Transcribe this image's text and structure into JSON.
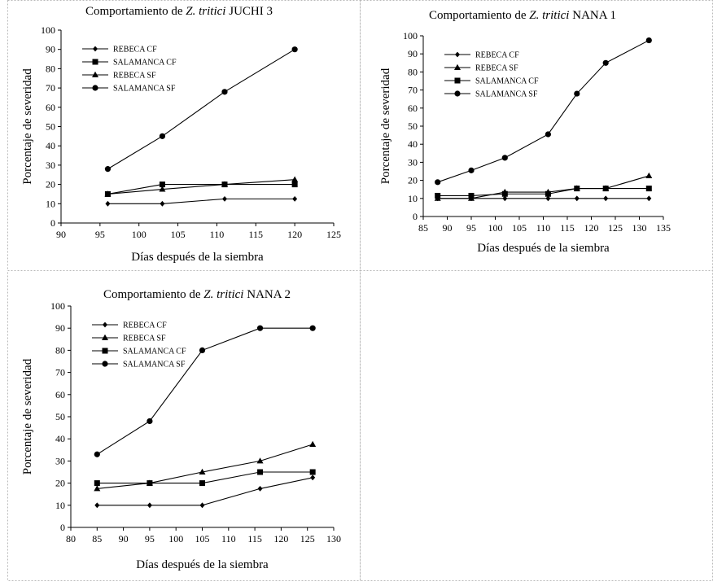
{
  "chart_data": [
    {
      "type": "line",
      "title": "Comportamiento de Z. tritici JUCHI 3",
      "title_parts": {
        "prefix": "Comportamiento de ",
        "italic": "Z. tritici",
        "suffix": " JUCHI 3"
      },
      "xlabel": "Días después de la siembra",
      "ylabel": "Porcentaje de severidad",
      "xlim": [
        90,
        125
      ],
      "ylim": [
        0,
        100
      ],
      "xticks": [
        90,
        95,
        100,
        105,
        110,
        115,
        120,
        125
      ],
      "yticks": [
        0,
        10,
        20,
        30,
        40,
        50,
        60,
        70,
        80,
        90,
        100
      ],
      "legend_position": "top-left",
      "grid": false,
      "series": [
        {
          "name": "REBECA CF",
          "marker": "diamond",
          "x": [
            96,
            103,
            111,
            120
          ],
          "y": [
            10,
            10,
            12.5,
            12.5
          ]
        },
        {
          "name": "SALAMANCA CF",
          "marker": "square",
          "x": [
            96,
            103,
            111,
            120
          ],
          "y": [
            15,
            20,
            20,
            20
          ]
        },
        {
          "name": "REBECA SF",
          "marker": "triangle",
          "x": [
            96,
            103,
            111,
            120
          ],
          "y": [
            15,
            17.5,
            20,
            22.5
          ]
        },
        {
          "name": "SALAMANCA SF",
          "marker": "circle",
          "x": [
            96,
            103,
            111,
            120
          ],
          "y": [
            28,
            45,
            68,
            90
          ]
        }
      ]
    },
    {
      "type": "line",
      "title": "Comportamiento de Z. tritici NANA 1",
      "title_parts": {
        "prefix": "Comportamiento de ",
        "italic": "Z. tritici",
        "suffix": " NANA 1"
      },
      "xlabel": "Días después de la siembra",
      "ylabel": "Porcentaje de severidad",
      "xlim": [
        85,
        135
      ],
      "ylim": [
        0,
        100
      ],
      "xticks": [
        85,
        90,
        95,
        100,
        105,
        110,
        115,
        120,
        125,
        130,
        135
      ],
      "yticks": [
        0,
        10,
        20,
        30,
        40,
        50,
        60,
        70,
        80,
        90,
        100
      ],
      "legend_position": "top-left",
      "grid": false,
      "series": [
        {
          "name": "REBECA CF",
          "marker": "diamond",
          "x": [
            88,
            95,
            102,
            111,
            117,
            123,
            132
          ],
          "y": [
            10,
            10,
            10,
            10,
            10,
            10,
            10
          ]
        },
        {
          "name": "REBECA SF",
          "marker": "triangle",
          "x": [
            88,
            95,
            102,
            111,
            117,
            123,
            132
          ],
          "y": [
            10,
            10,
            13.5,
            13.5,
            15.5,
            15.5,
            22.5
          ]
        },
        {
          "name": "SALAMANCA CF",
          "marker": "square",
          "x": [
            88,
            95,
            102,
            111,
            117,
            123,
            132
          ],
          "y": [
            11.5,
            11.5,
            12.5,
            12.5,
            15.5,
            15.5,
            15.5
          ]
        },
        {
          "name": "SALAMANCA SF",
          "marker": "circle",
          "x": [
            88,
            95,
            102,
            111,
            117,
            123,
            132
          ],
          "y": [
            19,
            25.5,
            32.5,
            45.5,
            68,
            85,
            97.5
          ]
        }
      ]
    },
    {
      "type": "line",
      "title": "Comportamiento de Z. tritici NANA 2",
      "title_parts": {
        "prefix": "Comportamiento de ",
        "italic": "Z. tritici",
        "suffix": " NANA 2"
      },
      "xlabel": "Días después de la siembra",
      "ylabel": "Porcentaje de severidad",
      "xlim": [
        80,
        130
      ],
      "ylim": [
        0,
        100
      ],
      "xticks": [
        80,
        85,
        90,
        95,
        100,
        105,
        110,
        115,
        120,
        125,
        130
      ],
      "yticks": [
        0,
        10,
        20,
        30,
        40,
        50,
        60,
        70,
        80,
        90,
        100
      ],
      "legend_position": "top-left",
      "grid": false,
      "series": [
        {
          "name": "REBECA CF",
          "marker": "diamond",
          "x": [
            85,
            95,
            105,
            116,
            126
          ],
          "y": [
            10,
            10,
            10,
            17.5,
            22.5
          ]
        },
        {
          "name": "REBECA SF",
          "marker": "triangle",
          "x": [
            85,
            95,
            105,
            116,
            126
          ],
          "y": [
            17.5,
            20,
            25,
            30,
            37.5
          ]
        },
        {
          "name": "SALAMANCA CF",
          "marker": "square",
          "x": [
            85,
            95,
            105,
            116,
            126
          ],
          "y": [
            20,
            20,
            20,
            25,
            25
          ]
        },
        {
          "name": "SALAMANCA SF",
          "marker": "circle",
          "x": [
            85,
            95,
            105,
            116,
            126
          ],
          "y": [
            33,
            48,
            80,
            90,
            90
          ]
        }
      ]
    }
  ]
}
